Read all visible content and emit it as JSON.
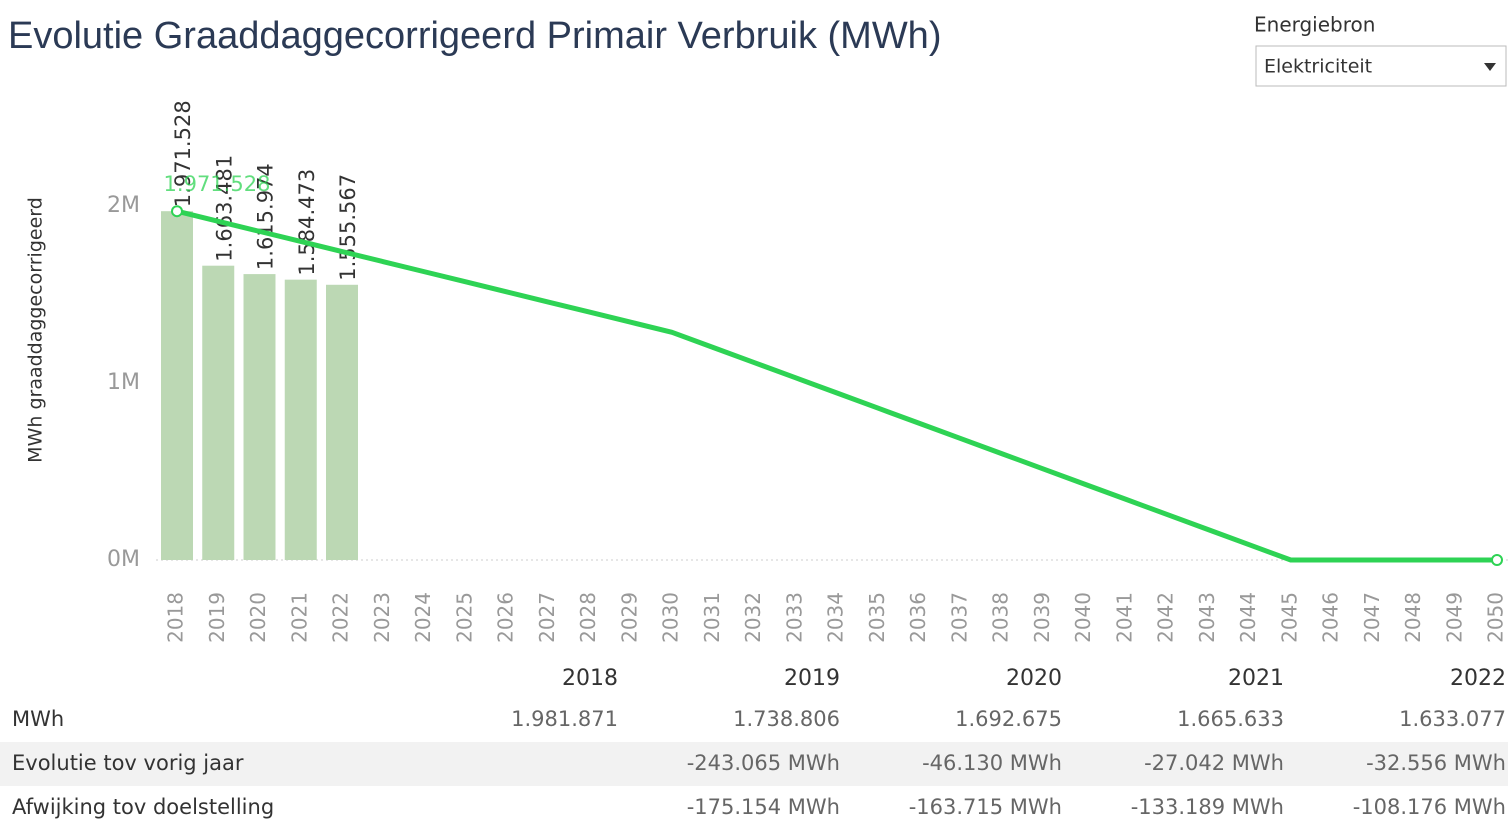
{
  "chart_data": {
    "type": "bar_line",
    "title": "Evolutie Graaddaggecorrigeerd Primair Verbruik (MWh)",
    "y_label": "MWh graaddaggecorrigeerd",
    "categories": [
      "2018",
      "2019",
      "2020",
      "2021",
      "2022",
      "2023",
      "2024",
      "2025",
      "2026",
      "2027",
      "2028",
      "2029",
      "2030",
      "2031",
      "2032",
      "2033",
      "2034",
      "2035",
      "2036",
      "2037",
      "2038",
      "2039",
      "2040",
      "2041",
      "2042",
      "2043",
      "2044",
      "2045",
      "2046",
      "2047",
      "2048",
      "2049",
      "2050"
    ],
    "bars": {
      "color": "#bcd8b4",
      "values": [
        1971528,
        1663481,
        1615974,
        1584473,
        1555567,
        null,
        null,
        null,
        null,
        null,
        null,
        null,
        null,
        null,
        null,
        null,
        null,
        null,
        null,
        null,
        null,
        null,
        null,
        null,
        null,
        null,
        null,
        null,
        null,
        null,
        null,
        null,
        null
      ],
      "value_labels": [
        "1.971.528",
        "1.663.481",
        "1.615.974",
        "1.584.473",
        "1.555.567",
        null,
        null,
        null,
        null,
        null,
        null,
        null,
        null,
        null,
        null,
        null,
        null,
        null,
        null,
        null,
        null,
        null,
        null,
        null,
        null,
        null,
        null,
        null,
        null,
        null,
        null,
        null,
        null
      ]
    },
    "line": {
      "color": "#2ed354",
      "values": [
        1971528,
        1914484,
        1857440,
        1800396,
        1743352,
        1686308,
        1629264,
        1572220,
        1515176,
        1458132,
        1401088,
        1344044,
        1287000,
        1201200,
        1115400,
        1029600,
        943800,
        858000,
        772200,
        686400,
        600600,
        514800,
        429000,
        343200,
        257400,
        171600,
        85800,
        0,
        0,
        0,
        0,
        0,
        0
      ],
      "value_labels": [
        "1.971.528",
        null,
        null,
        null,
        null,
        null,
        null,
        null,
        null,
        null,
        null,
        null,
        null,
        null,
        null,
        null,
        null,
        null,
        null,
        null,
        null,
        null,
        null,
        null,
        null,
        null,
        null,
        null,
        null,
        null,
        null,
        null,
        null
      ]
    },
    "ylim": [
      0,
      2600000
    ],
    "yticks": [
      {
        "value": 0,
        "label": "0M"
      },
      {
        "value": 1000000,
        "label": "1M"
      },
      {
        "value": 2000000,
        "label": "2M"
      }
    ]
  },
  "filter": {
    "label": "Energiebron",
    "value": "Elektriciteit"
  },
  "table": {
    "columns": [
      "2018",
      "2019",
      "2020",
      "2021",
      "2022"
    ],
    "rows": [
      {
        "label": "MWh",
        "cells": [
          "1.981.871",
          "1.738.806",
          "1.692.675",
          "1.665.633",
          "1.633.077"
        ]
      },
      {
        "label": "Evolutie tov vorig jaar",
        "cells": [
          null,
          "-243.065 MWh",
          "-46.130 MWh",
          "-27.042 MWh",
          "-32.556 MWh"
        ]
      },
      {
        "label": "Afwijking tov doelstelling",
        "cells": [
          null,
          "-175.154 MWh",
          "-163.715 MWh",
          "-133.189 MWh",
          "-108.176 MWh"
        ]
      }
    ]
  }
}
